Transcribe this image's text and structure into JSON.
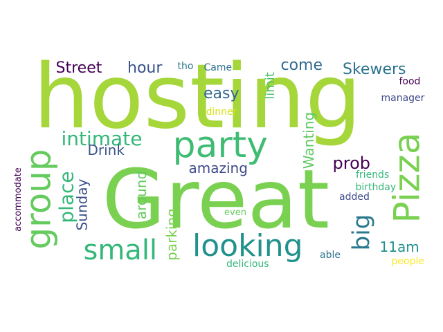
{
  "word_cloud": {
    "words": [
      {
        "key": "hosting",
        "text": "hosting",
        "color": "#a5d63a",
        "orientation": "horizontal"
      },
      {
        "key": "great",
        "text": "Great",
        "color": "#7ad151",
        "orientation": "horizontal"
      },
      {
        "key": "party",
        "text": "party",
        "color": "#3fbc73",
        "orientation": "horizontal"
      },
      {
        "key": "pizza",
        "text": "Pizza",
        "color": "#7ad151",
        "orientation": "vertical"
      },
      {
        "key": "group",
        "text": "group",
        "color": "#65cb5e",
        "orientation": "vertical"
      },
      {
        "key": "looking",
        "text": "looking",
        "color": "#21918c",
        "orientation": "horizontal"
      },
      {
        "key": "small",
        "text": "small",
        "color": "#35b779",
        "orientation": "horizontal"
      },
      {
        "key": "big",
        "text": "big",
        "color": "#2a788e",
        "orientation": "vertical"
      },
      {
        "key": "intimate",
        "text": "intimate",
        "color": "#35b779",
        "orientation": "horizontal"
      },
      {
        "key": "place",
        "text": "place",
        "color": "#35b779",
        "orientation": "vertical"
      },
      {
        "key": "street",
        "text": "Street",
        "color": "#440154",
        "orientation": "horizontal"
      },
      {
        "key": "hour",
        "text": "hour",
        "color": "#3b528b",
        "orientation": "horizontal"
      },
      {
        "key": "come",
        "text": "come",
        "color": "#31688e",
        "orientation": "horizontal"
      },
      {
        "key": "skewers",
        "text": "Skewers",
        "color": "#2c728e",
        "orientation": "horizontal"
      },
      {
        "key": "easy",
        "text": "easy",
        "color": "#31688e",
        "orientation": "horizontal"
      },
      {
        "key": "prob",
        "text": "prob",
        "color": "#440154",
        "orientation": "horizontal"
      },
      {
        "key": "drink",
        "text": "Drink",
        "color": "#3b528b",
        "orientation": "horizontal"
      },
      {
        "key": "amazing",
        "text": "amazing",
        "color": "#3e4989",
        "orientation": "horizontal"
      },
      {
        "key": "sunday",
        "text": "Sunday",
        "color": "#3b528b",
        "orientation": "vertical"
      },
      {
        "key": "around",
        "text": "around",
        "color": "#65cb5e",
        "orientation": "vertical"
      },
      {
        "key": "parking",
        "text": "parking",
        "color": "#7ad151",
        "orientation": "vertical"
      },
      {
        "key": "wanting",
        "text": "Wanting",
        "color": "#5ec962",
        "orientation": "vertical"
      },
      {
        "key": "limit",
        "text": "limit",
        "color": "#4ac16d",
        "orientation": "vertical"
      },
      {
        "key": "11am",
        "text": "11am",
        "color": "#21918c",
        "orientation": "horizontal"
      },
      {
        "key": "tho",
        "text": "tho",
        "color": "#2a788e",
        "orientation": "horizontal"
      },
      {
        "key": "came",
        "text": "Came",
        "color": "#2c728e",
        "orientation": "horizontal"
      },
      {
        "key": "food",
        "text": "food",
        "color": "#440154",
        "orientation": "horizontal"
      },
      {
        "key": "manager",
        "text": "manager",
        "color": "#3e4989",
        "orientation": "horizontal"
      },
      {
        "key": "dinner",
        "text": "dinner",
        "color": "#d8e219",
        "orientation": "horizontal"
      },
      {
        "key": "friends",
        "text": "friends",
        "color": "#35b779",
        "orientation": "horizontal"
      },
      {
        "key": "birthday",
        "text": "birthday",
        "color": "#35b779",
        "orientation": "horizontal"
      },
      {
        "key": "added",
        "text": "added",
        "color": "#3e4989",
        "orientation": "horizontal"
      },
      {
        "key": "even",
        "text": "even",
        "color": "#65cb5e",
        "orientation": "horizontal"
      },
      {
        "key": "accommodate",
        "text": "accommodate",
        "color": "#440154",
        "orientation": "vertical"
      },
      {
        "key": "delicious",
        "text": "delicious",
        "color": "#35b779",
        "orientation": "horizontal"
      },
      {
        "key": "able",
        "text": "able",
        "color": "#2c728e",
        "orientation": "horizontal"
      },
      {
        "key": "people",
        "text": "people",
        "color": "#fde725",
        "orientation": "horizontal"
      }
    ]
  }
}
